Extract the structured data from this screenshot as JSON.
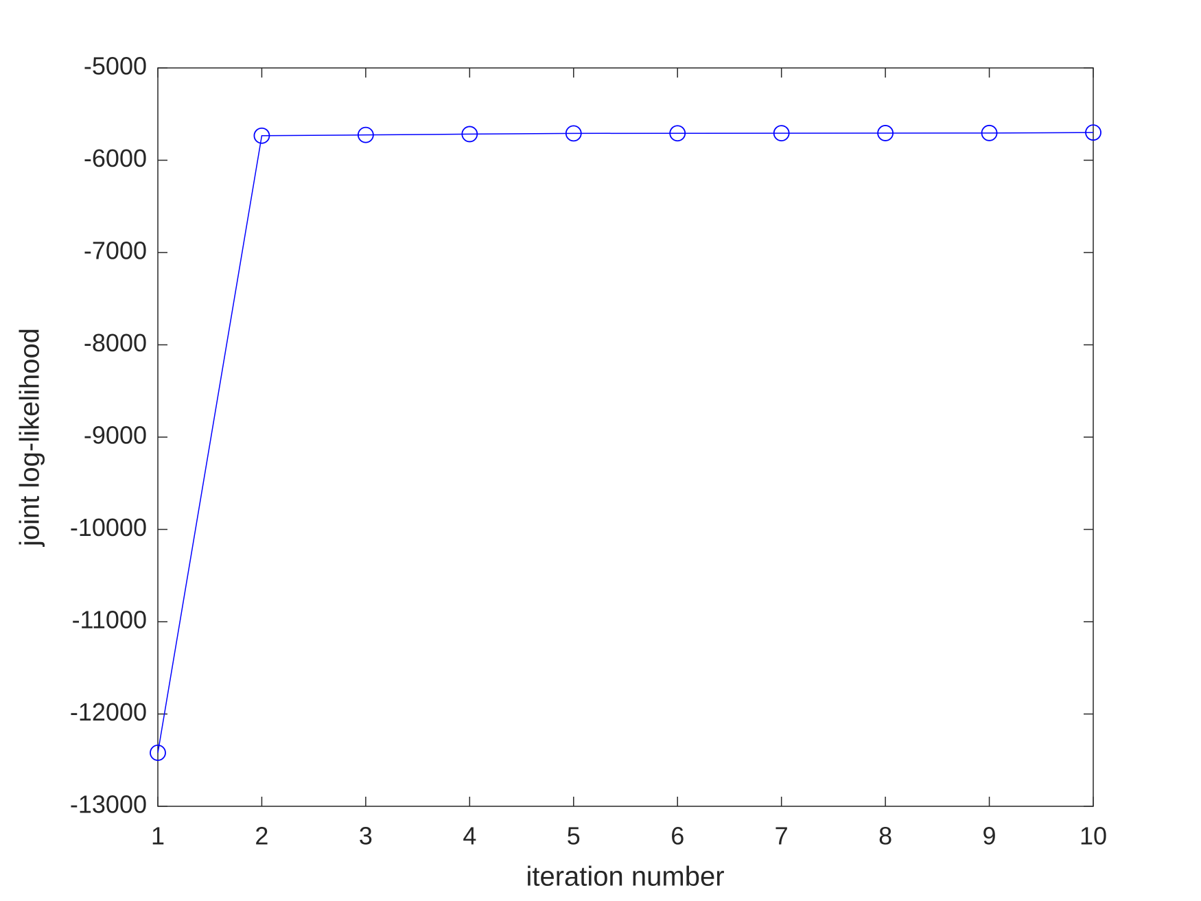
{
  "chart_data": {
    "type": "line",
    "xlabel": "iteration number",
    "ylabel": "joint log-likelihood",
    "x": [
      1,
      2,
      3,
      4,
      5,
      6,
      7,
      8,
      9,
      10
    ],
    "series": [
      {
        "color": "#0000ff",
        "marker": "circle",
        "values": [
          -12420,
          -5734,
          -5726,
          -5717,
          -5709,
          -5708,
          -5707,
          -5706,
          -5705,
          -5700
        ]
      }
    ],
    "xlim": [
      1,
      10
    ],
    "xticks": [
      1,
      2,
      3,
      4,
      5,
      6,
      7,
      8,
      9,
      10
    ],
    "ylim": [
      -13000,
      -5000
    ],
    "yticks": [
      -13000,
      -12000,
      -11000,
      -10000,
      -9000,
      -8000,
      -7000,
      -6000,
      -5000
    ],
    "grid": false
  }
}
